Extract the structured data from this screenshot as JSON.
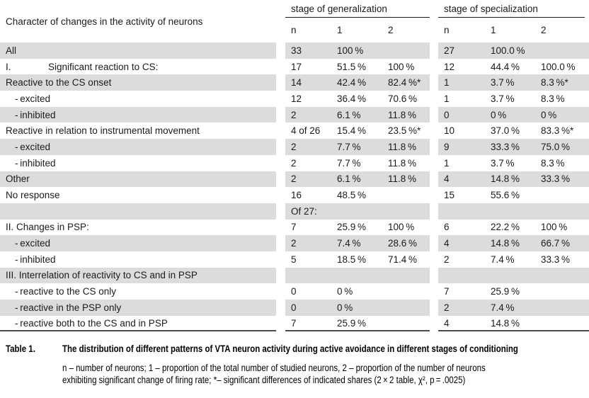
{
  "table": {
    "row_header": "Character of changes in the activity of neurons",
    "groups": [
      {
        "label": "stage of generalization",
        "columns": [
          "n",
          "1",
          "2"
        ]
      },
      {
        "label": "stage of specialization",
        "columns": [
          "n",
          "1",
          "2"
        ]
      }
    ],
    "rows": [
      {
        "label": "All",
        "indent": 0,
        "values": [
          "33",
          "100 %",
          "",
          "27",
          "100.0 %",
          ""
        ]
      },
      {
        "prefix": "I.",
        "label": "Significant reaction to CS:",
        "indent": 0,
        "values": [
          "17",
          "51.5 %",
          "100 %",
          "12",
          "44.4 %",
          "100.0 %"
        ]
      },
      {
        "label": "Reactive to the CS onset",
        "indent": 0,
        "values": [
          "14",
          "42.4 %",
          "82.4 %*",
          "1",
          "3.7 %",
          "8.3 %*"
        ]
      },
      {
        "label": "- excited",
        "indent": 1,
        "values": [
          "12",
          "36.4 %",
          "70.6 %",
          "1",
          "3.7 %",
          "8.3 %"
        ]
      },
      {
        "label": "- inhibited",
        "indent": 1,
        "values": [
          "2",
          "6.1 %",
          "11.8 %",
          "0",
          "0 %",
          "0 %"
        ]
      },
      {
        "label": "Reactive in relation to instrumental movement",
        "indent": 0,
        "values": [
          "4 of 26",
          "15.4 %",
          "23.5 %*",
          "10",
          "37.0 %",
          "83.3 %*"
        ]
      },
      {
        "label": "- excited",
        "indent": 1,
        "values": [
          "2",
          "7.7 %",
          "11.8 %",
          "9",
          "33.3 %",
          "75.0 %"
        ]
      },
      {
        "label": "- inhibited",
        "indent": 1,
        "values": [
          "2",
          "7.7 %",
          "11.8 %",
          "1",
          "3.7 %",
          "8.3 %"
        ]
      },
      {
        "label": "Other",
        "indent": 0,
        "values": [
          "2",
          "6.1 %",
          "11.8 %",
          "4",
          "14.8 %",
          "33.3 %"
        ]
      },
      {
        "label": "No response",
        "indent": 0,
        "values": [
          "16",
          "48.5 %",
          "",
          "15",
          "55.6 %",
          ""
        ]
      },
      {
        "label": "",
        "indent": 0,
        "values": [
          "Of 27:",
          "",
          "",
          "",
          "",
          ""
        ]
      },
      {
        "label": "II. Changes in PSP:",
        "indent": 0,
        "values": [
          "7",
          "25.9 %",
          "100 %",
          "6",
          "22.2 %",
          "100 %"
        ]
      },
      {
        "label": "- excited",
        "indent": 1,
        "values": [
          "2",
          "7.4 %",
          "28.6 %",
          "4",
          "14.8 %",
          "66.7 %"
        ]
      },
      {
        "label": "- inhibited",
        "indent": 1,
        "values": [
          "5",
          "18.5 %",
          "71.4 %",
          "2",
          "7.4 %",
          "33.3 %"
        ]
      },
      {
        "label": "III. Interrelation of reactivity to CS and in PSP",
        "indent": 0,
        "values": [
          "",
          "",
          "",
          "",
          "",
          ""
        ]
      },
      {
        "label": "- reactive to the CS only",
        "indent": 1,
        "values": [
          "0",
          "0 %",
          "",
          "7",
          "25.9 %",
          ""
        ]
      },
      {
        "label": "- reactive in the PSP only",
        "indent": 1,
        "values": [
          "0",
          "0 %",
          "",
          "2",
          "7.4 %",
          ""
        ]
      },
      {
        "label": "- reactive both to the CS and in PSP",
        "indent": 1,
        "values": [
          "7",
          "25.9 %",
          "",
          "4",
          "14.8 %",
          ""
        ]
      }
    ]
  },
  "caption": {
    "label": "Table 1.",
    "title": "The distribution of different patterns of VTA neuron activity during active avoidance in different stages of conditioning",
    "footnote_lines": [
      "n – number of neurons; 1 – proportion of the total number of studied neurons, 2 – proportion of the number of neurons",
      "exhibiting significant change of firing rate; *– significant differences of indicated shares (2 × 2 table, χ², p = .0025)"
    ]
  },
  "colors": {
    "row_shade": "#dcdcdc",
    "header_rule": "#1c1c1c",
    "bottom_rule": "#4d4d4d",
    "text": "#1b1b1b"
  }
}
